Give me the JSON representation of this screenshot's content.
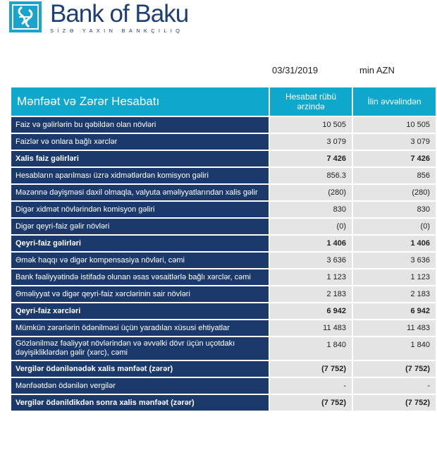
{
  "brand": {
    "name": "Bank of Baku",
    "tagline": "SİZƏ YAXIN BANKÇILIQ",
    "logo": "chain-link-logo"
  },
  "date": "03/31/2019",
  "unit": "min AZN",
  "table": {
    "title": "Mənfəət və Zərər Hesabatı",
    "columns": [
      "Hesabat rübü ərzində",
      "İlin əvvəlindən"
    ],
    "rows": [
      {
        "label": "Faiz və gəlirlərin bu qəbildən olan növləri",
        "q": "10 505",
        "ytd": "10 505",
        "bold": false
      },
      {
        "label": "Faizlər və onlara bağlı xərclər",
        "q": "3 079",
        "ytd": "3 079",
        "bold": false
      },
      {
        "label": "Xalis faiz gəlirləri",
        "q": "7 426",
        "ytd": "7 426",
        "bold": true
      },
      {
        "label": "Hesabların aparılması üzrə xidmətlərdən komisyon gəliri",
        "q": "856.3",
        "ytd": "856",
        "bold": false
      },
      {
        "label": "Məzənnə dəyişməsi daxil olmaqla, valyuta əməliyyatlarından xalis gəlir",
        "q": "(280)",
        "ytd": "(280)",
        "bold": false
      },
      {
        "label": "Digər xidmət növlərindən komisyon gəliri",
        "q": "830",
        "ytd": "830",
        "bold": false
      },
      {
        "label": "Digər qeyri-faiz gəlir növləri",
        "q": "(0)",
        "ytd": "(0)",
        "bold": false
      },
      {
        "label": "Qeyri-faiz gəlirləri",
        "q": "1 406",
        "ytd": "1 406",
        "bold": true
      },
      {
        "label": "Əmək haqqı və digər kompensasiya növləri, cəmi",
        "q": "3 636",
        "ytd": "3 636",
        "bold": false
      },
      {
        "label": "Bank fəaliyyətində istifadə olunan əsas vəsaitlərlə bağlı xərclər, cəmi",
        "q": "1 123",
        "ytd": "1 123",
        "bold": false
      },
      {
        "label": "Əməliyyat və digər qeyri-faiz xərclərinin sair növləri",
        "q": "2 183",
        "ytd": "2 183",
        "bold": false
      },
      {
        "label": "Qeyri-faiz xərcləri",
        "q": "6 942",
        "ytd": "6 942",
        "bold": true
      },
      {
        "label": "Mümkün zərərlərin ödənilməsi üçün yaradılan xüsusi ehtiyatlar",
        "q": "11 483",
        "ytd": "11 483",
        "bold": false
      },
      {
        "label": "Gözlənilməz fəaliyyət növlərindən və əvvəlki dövr üçün uçotdakı dəyişikliklərdən gəlir (xərc), cəmi",
        "q": "1 840",
        "ytd": "1 840",
        "bold": false
      },
      {
        "label": "Vergilər ödənilənədək xalis mənfəət (zərər)",
        "q": "(7 752)",
        "ytd": "(7 752)",
        "bold": true
      },
      {
        "label": "Mənfəətdən ödənilən vergilər",
        "q": "-",
        "ytd": "-",
        "bold": false
      },
      {
        "label": "Vergilər ödənildikdən sonra xalis mənfəət (zərər)",
        "q": "(7 752)",
        "ytd": "(7 752)",
        "bold": true
      }
    ]
  }
}
